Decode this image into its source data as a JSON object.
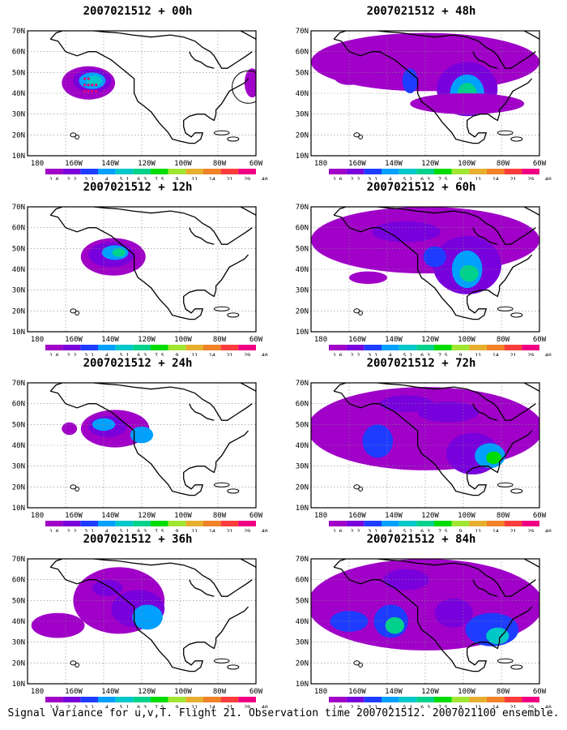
{
  "footer": "Signal Variance for u,v,T. Flight 21. Observation time 2007021512. 2007021100 ensemble.",
  "axes": {
    "x_ticks": [
      "180",
      "160W",
      "140W",
      "120W",
      "100W",
      "80W",
      "60W"
    ],
    "y_ticks": [
      "70N",
      "60N",
      "50N",
      "40N",
      "30N",
      "20N",
      "10N"
    ]
  },
  "colorbar": {
    "labels": [
      "1.6",
      "2.2",
      "3.1",
      "4",
      "5.1",
      "6.3",
      "7.5",
      "9",
      "11",
      "14",
      "21",
      "29",
      "40"
    ],
    "colors": [
      "#a000c8",
      "#7800dc",
      "#1e3cff",
      "#00a0ff",
      "#00c8c8",
      "#00d28c",
      "#00dc00",
      "#a0e632",
      "#e6af2d",
      "#f08228",
      "#fa3c3c",
      "#f00082"
    ]
  },
  "panels": [
    {
      "title": "2007021512 + 00h",
      "col": 0,
      "row": 0
    },
    {
      "title": "2007021512 + 48h",
      "col": 1,
      "row": 0
    },
    {
      "title": "2007021512 + 12h",
      "col": 0,
      "row": 1
    },
    {
      "title": "2007021512 + 60h",
      "col": 1,
      "row": 1
    },
    {
      "title": "2007021512 + 24h",
      "col": 0,
      "row": 2
    },
    {
      "title": "2007021512 + 72h",
      "col": 1,
      "row": 2
    },
    {
      "title": "2007021512 + 36h",
      "col": 0,
      "row": 3
    },
    {
      "title": "2007021512 + 84h",
      "col": 1,
      "row": 3
    }
  ]
}
